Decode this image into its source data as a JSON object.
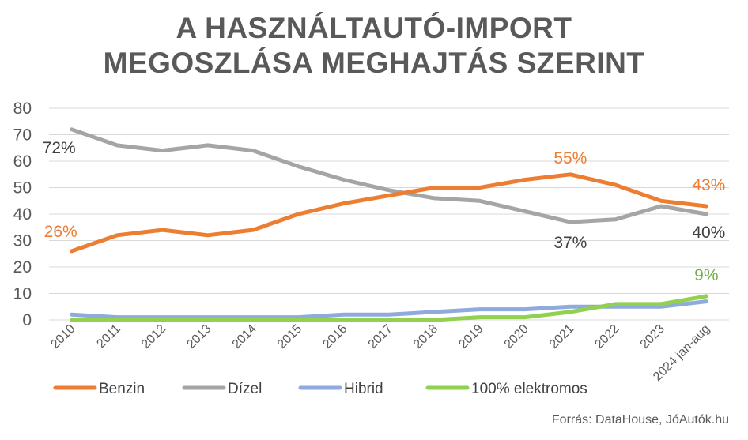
{
  "title_lines": [
    "A HASZNÁLTAUTÓ-IMPORT",
    "MEGOSZLÁSA MEGHAJTÁS SZERINT"
  ],
  "source": "Forrás: DataHouse, JóAutók.hu",
  "chart_data": {
    "type": "line",
    "categories": [
      "2010",
      "2011",
      "2012",
      "2013",
      "2014",
      "2015",
      "2016",
      "2017",
      "2018",
      "2019",
      "2020",
      "2021",
      "2022",
      "2023",
      "2024 jan-aug"
    ],
    "ylim": [
      0,
      80
    ],
    "yticks": [
      0,
      10,
      20,
      30,
      40,
      50,
      60,
      70,
      80
    ],
    "grid": true,
    "legend": "bottom",
    "series": [
      {
        "name": "Benzin",
        "color": "#ED7D31",
        "values": [
          26,
          32,
          34,
          32,
          34,
          40,
          44,
          47,
          50,
          50,
          53,
          55,
          51,
          45,
          43
        ]
      },
      {
        "name": "Dízel",
        "color": "#A5A5A5",
        "values": [
          72,
          66,
          64,
          66,
          64,
          58,
          53,
          49,
          46,
          45,
          41,
          37,
          38,
          43,
          40
        ]
      },
      {
        "name": "Hibrid",
        "color": "#8FAADC",
        "values": [
          2,
          1,
          1,
          1,
          1,
          1,
          2,
          2,
          3,
          4,
          4,
          5,
          5,
          5,
          7
        ]
      },
      {
        "name": "100% elektromos",
        "color": "#92D050",
        "values": [
          0,
          0,
          0,
          0,
          0,
          0,
          0,
          0,
          0,
          1,
          1,
          3,
          6,
          6,
          9
        ]
      }
    ],
    "annotations": [
      {
        "text": "72%",
        "series": 1,
        "index": 0,
        "color": "#404040"
      },
      {
        "text": "26%",
        "series": 0,
        "index": 0,
        "color": "#ED7D31"
      },
      {
        "text": "55%",
        "series": 0,
        "index": 11,
        "color": "#ED7D31"
      },
      {
        "text": "37%",
        "series": 1,
        "index": 11,
        "color": "#404040"
      },
      {
        "text": "43%",
        "series": 0,
        "index": 14,
        "color": "#ED7D31"
      },
      {
        "text": "40%",
        "series": 1,
        "index": 14,
        "color": "#404040"
      },
      {
        "text": "9%",
        "series": 3,
        "index": 14,
        "color": "#70AD47"
      }
    ]
  }
}
